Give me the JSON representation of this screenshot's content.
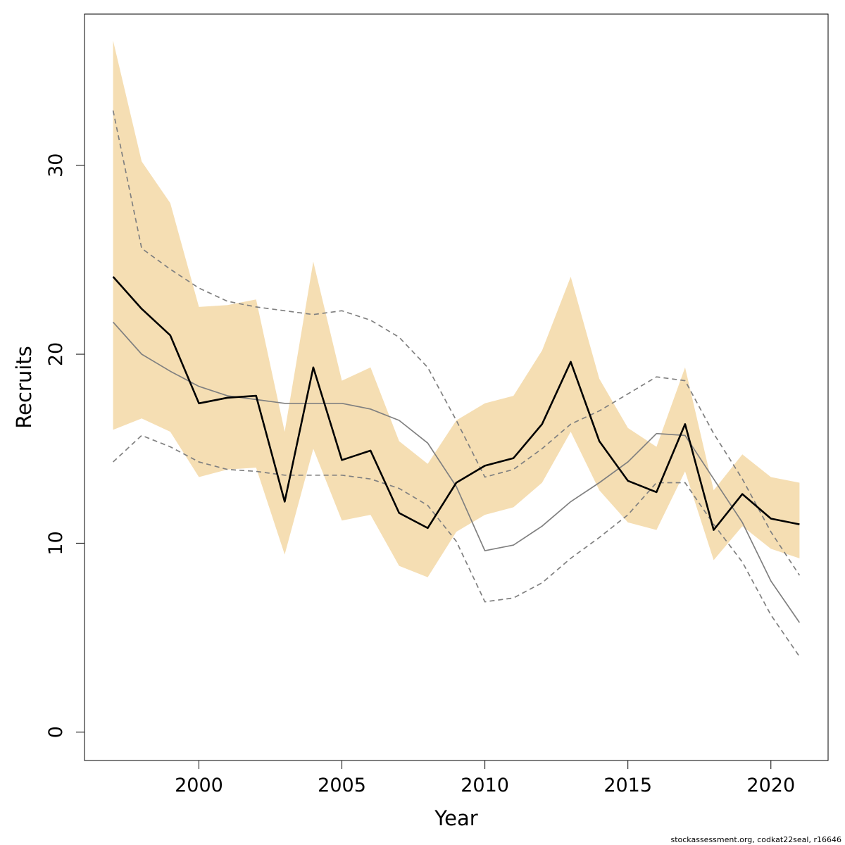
{
  "chart_data": {
    "type": "line",
    "xlabel": "Year",
    "ylabel": "Recruits",
    "xlim": [
      1996,
      2022
    ],
    "ylim": [
      -1.5,
      38
    ],
    "x_ticks": [
      2000,
      2005,
      2010,
      2015,
      2020
    ],
    "y_ticks": [
      0,
      10,
      20,
      30
    ],
    "grid": false,
    "colors": {
      "band": "#f5deb3",
      "estimate": "#000000",
      "comparison": "#808080"
    },
    "x": [
      1997,
      1998,
      1999,
      2000,
      2001,
      2002,
      2003,
      2004,
      2005,
      2006,
      2007,
      2008,
      2009,
      2010,
      2011,
      2012,
      2013,
      2014,
      2015,
      2016,
      2017,
      2018,
      2019,
      2020,
      2021
    ],
    "series": [
      {
        "style": "band",
        "lower": [
          16.0,
          16.6,
          15.9,
          13.5,
          13.9,
          14.0,
          9.4,
          15.0,
          11.2,
          11.5,
          8.8,
          8.2,
          10.6,
          11.5,
          11.9,
          13.2,
          15.9,
          12.8,
          11.1,
          10.7,
          13.8,
          9.1,
          10.9,
          9.7,
          9.2
        ],
        "upper": [
          36.6,
          30.2,
          28.0,
          22.5,
          22.6,
          22.9,
          15.9,
          24.9,
          18.6,
          19.3,
          15.4,
          14.2,
          16.5,
          17.4,
          17.8,
          20.2,
          24.1,
          18.7,
          16.1,
          15.1,
          19.3,
          12.8,
          14.7,
          13.5,
          13.2
        ]
      },
      {
        "style": "estimate",
        "values": [
          24.1,
          22.4,
          21.0,
          17.4,
          17.7,
          17.8,
          12.2,
          19.3,
          14.4,
          14.9,
          11.6,
          10.8,
          13.2,
          14.1,
          14.5,
          16.3,
          19.6,
          15.4,
          13.3,
          12.7,
          16.3,
          10.7,
          12.6,
          11.3,
          11.0
        ]
      },
      {
        "style": "comparison",
        "values": [
          21.7,
          20.0,
          19.1,
          18.3,
          17.8,
          17.6,
          17.4,
          17.4,
          17.4,
          17.1,
          16.5,
          15.3,
          13.0,
          9.6,
          9.9,
          10.9,
          12.2,
          13.2,
          14.3,
          15.8,
          15.7,
          13.4,
          11.1,
          8.0,
          5.8
        ]
      },
      {
        "style": "comparison-upper",
        "values": [
          32.9,
          25.6,
          24.5,
          23.5,
          22.8,
          22.5,
          22.3,
          22.1,
          22.3,
          21.8,
          20.9,
          19.3,
          16.5,
          13.5,
          13.9,
          15.0,
          16.3,
          17.0,
          17.9,
          18.8,
          18.6,
          15.8,
          13.4,
          10.6,
          8.3
        ]
      },
      {
        "style": "comparison-lower",
        "values": [
          14.3,
          15.7,
          15.1,
          14.3,
          13.9,
          13.8,
          13.6,
          13.6,
          13.6,
          13.4,
          12.9,
          12.0,
          10.1,
          6.9,
          7.1,
          7.9,
          9.2,
          10.3,
          11.5,
          13.2,
          13.2,
          11.0,
          9.0,
          6.2,
          4.0
        ]
      }
    ]
  },
  "footer": {
    "note": "stockassessment.org, codkat22seal, r16646"
  }
}
